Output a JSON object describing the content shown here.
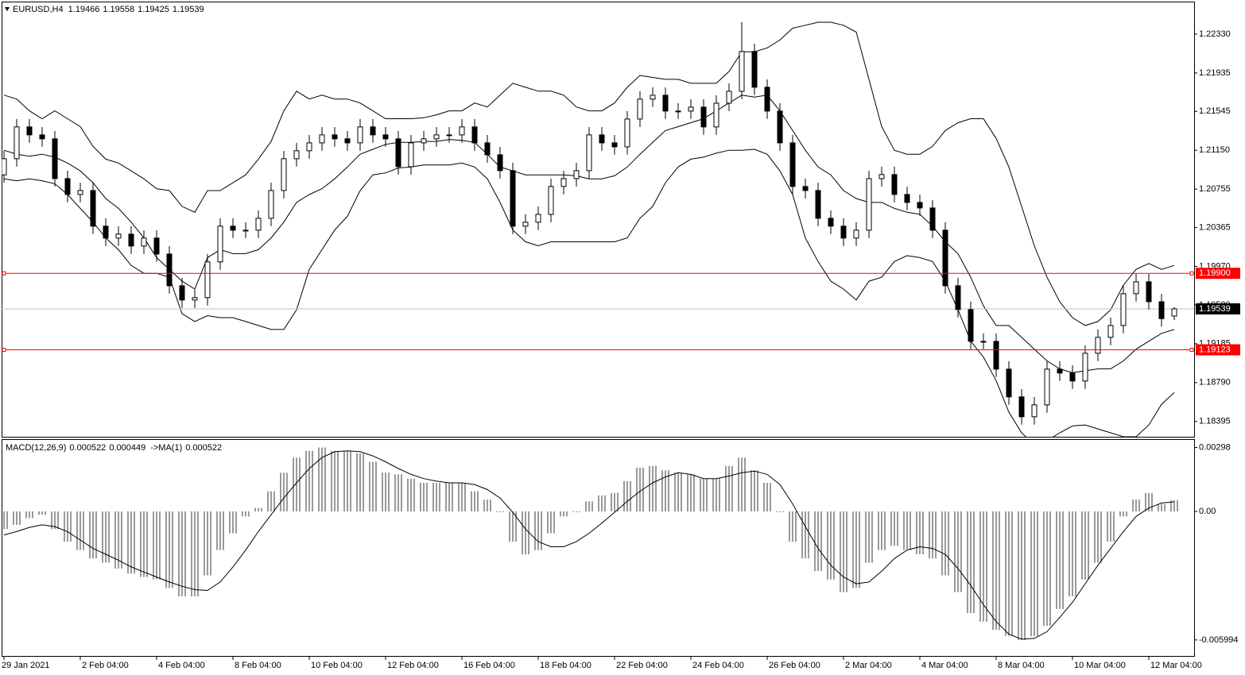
{
  "chart_data": [
    {
      "type": "candlestick",
      "symbol": "EURUSD,H4",
      "color": "#000000",
      "up_color": "#ffffff",
      "level_color": "#ff0000",
      "bid_color": "#c0c0c0",
      "categories": [
        "29 Jan 2021",
        null,
        null,
        null,
        null,
        null,
        "2 Feb 04:00",
        null,
        null,
        null,
        null,
        null,
        "4 Feb 04:00",
        null,
        null,
        null,
        null,
        null,
        "8 Feb 04:00",
        null,
        null,
        null,
        null,
        null,
        "10 Feb 04:00",
        null,
        null,
        null,
        null,
        null,
        "12 Feb 04:00",
        null,
        null,
        null,
        null,
        null,
        "16 Feb 04:00",
        null,
        null,
        null,
        null,
        null,
        "18 Feb 04:00",
        null,
        null,
        null,
        null,
        null,
        "22 Feb 04:00",
        null,
        null,
        null,
        null,
        null,
        "24 Feb 04:00",
        null,
        null,
        null,
        null,
        null,
        "26 Feb 04:00",
        null,
        null,
        null,
        null,
        null,
        "2 Mar 04:00",
        null,
        null,
        null,
        null,
        null,
        "4 Mar 04:00",
        null,
        null,
        null,
        null,
        null,
        "8 Mar 04:00",
        null,
        null,
        null,
        null,
        null,
        "10 Mar 04:00",
        null,
        null,
        null,
        null,
        null,
        "12 Mar 04:00",
        null,
        null
      ],
      "open": [
        1.209,
        1.21064,
        1.21387,
        1.21306,
        1.21266,
        1.20862,
        1.20701,
        1.20741,
        1.20379,
        1.20258,
        1.20298,
        1.20177,
        1.20258,
        1.20096,
        1.19774,
        1.19629,
        1.19653,
        1.20016,
        1.20379,
        1.20338,
        1.20338,
        1.20459,
        1.20741,
        1.21064,
        1.21145,
        1.21225,
        1.21306,
        1.21266,
        1.21225,
        1.21387,
        1.21306,
        1.21266,
        1.20983,
        1.21225,
        1.21266,
        1.21306,
        1.21306,
        1.21387,
        1.21225,
        1.21104,
        1.20943,
        1.20379,
        1.20419,
        1.20499,
        1.20782,
        1.20862,
        1.20943,
        1.21306,
        1.21225,
        1.21185,
        1.21467,
        1.21669,
        1.21709,
        1.21548,
        1.21548,
        1.21588,
        1.21387,
        1.21628,
        1.21749,
        1.22153,
        1.2179,
        1.21548,
        1.21225,
        1.20782,
        1.20741,
        1.20459,
        1.20379,
        1.20258,
        1.20338,
        1.20862,
        1.20903,
        1.20701,
        1.2062,
        1.20564,
        1.20338,
        1.19774,
        1.19532,
        1.19209,
        1.19209,
        1.18927,
        1.18645,
        1.18443,
        1.18564,
        1.18927,
        1.18887,
        1.18806,
        1.19088,
        1.1925,
        1.1937,
        1.19693,
        1.19814,
        1.19612,
        1.19466
      ],
      "high": [
        1.21144,
        1.21467,
        1.21467,
        1.21386,
        1.21346,
        1.20942,
        1.20821,
        1.20821,
        1.20459,
        1.20378,
        1.20378,
        1.20338,
        1.20338,
        1.20176,
        1.19854,
        1.19733,
        1.20096,
        1.20459,
        1.20459,
        1.20418,
        1.20539,
        1.20821,
        1.21144,
        1.21225,
        1.21305,
        1.21386,
        1.21386,
        1.21346,
        1.21467,
        1.21467,
        1.21386,
        1.21346,
        1.21305,
        1.21346,
        1.21386,
        1.21386,
        1.21467,
        1.21467,
        1.21305,
        1.21184,
        1.21023,
        1.20499,
        1.20579,
        1.20862,
        1.20942,
        1.21023,
        1.21386,
        1.21386,
        1.21305,
        1.21547,
        1.21749,
        1.21789,
        1.21789,
        1.21628,
        1.21668,
        1.21668,
        1.21708,
        1.21829,
        1.2245,
        1.22233,
        1.2187,
        1.21628,
        1.21305,
        1.20862,
        1.20821,
        1.20539,
        1.20459,
        1.20418,
        1.20942,
        1.20983,
        1.20983,
        1.20781,
        1.207,
        1.20644,
        1.20418,
        1.19854,
        1.19612,
        1.19289,
        1.19289,
        1.19007,
        1.18725,
        1.18644,
        1.19007,
        1.19007,
        1.18967,
        1.19168,
        1.1933,
        1.1945,
        1.19773,
        1.19894,
        1.19894,
        1.19692,
        1.19558
      ],
      "low": [
        1.2082,
        1.20984,
        1.21226,
        1.21186,
        1.20782,
        1.20621,
        1.20621,
        1.20299,
        1.20178,
        1.20178,
        1.20097,
        1.20097,
        1.20016,
        1.19694,
        1.19549,
        1.19549,
        1.19573,
        1.19936,
        1.20258,
        1.20258,
        1.20258,
        1.20379,
        1.20661,
        1.20984,
        1.21065,
        1.21145,
        1.21186,
        1.21145,
        1.21145,
        1.21226,
        1.21186,
        1.20903,
        1.20903,
        1.21145,
        1.21186,
        1.21226,
        1.21226,
        1.21145,
        1.21024,
        1.20863,
        1.20299,
        1.20299,
        1.20339,
        1.20419,
        1.20702,
        1.20782,
        1.20863,
        1.21145,
        1.21105,
        1.21105,
        1.21387,
        1.21589,
        1.21468,
        1.21468,
        1.21468,
        1.21307,
        1.21307,
        1.21548,
        1.21669,
        1.2171,
        1.21468,
        1.21145,
        1.20702,
        1.20661,
        1.20379,
        1.20299,
        1.20178,
        1.20178,
        1.20258,
        1.20782,
        1.20621,
        1.2054,
        1.20484,
        1.20258,
        1.19694,
        1.19452,
        1.19129,
        1.19129,
        1.18847,
        1.18565,
        1.18363,
        1.18363,
        1.18484,
        1.18807,
        1.18726,
        1.18726,
        1.19008,
        1.1917,
        1.1929,
        1.19613,
        1.19532,
        1.1936,
        1.19425
      ],
      "close": [
        1.21064,
        1.21387,
        1.21306,
        1.21266,
        1.20862,
        1.20701,
        1.20741,
        1.20379,
        1.20258,
        1.20298,
        1.20177,
        1.20258,
        1.20096,
        1.19774,
        1.19629,
        1.19653,
        1.20016,
        1.20379,
        1.20338,
        1.20338,
        1.20459,
        1.20741,
        1.21064,
        1.21145,
        1.21225,
        1.21306,
        1.21266,
        1.21225,
        1.21387,
        1.21306,
        1.21266,
        1.20983,
        1.21225,
        1.21266,
        1.21306,
        1.21306,
        1.21387,
        1.21225,
        1.21104,
        1.20943,
        1.20379,
        1.20419,
        1.20499,
        1.20782,
        1.20862,
        1.20943,
        1.21306,
        1.21225,
        1.21185,
        1.21467,
        1.21669,
        1.21709,
        1.21548,
        1.21548,
        1.21588,
        1.21387,
        1.21628,
        1.21749,
        1.22153,
        1.2179,
        1.21548,
        1.21225,
        1.20782,
        1.20741,
        1.20459,
        1.20379,
        1.20258,
        1.20338,
        1.20862,
        1.20903,
        1.20701,
        1.2062,
        1.20564,
        1.20338,
        1.19774,
        1.19532,
        1.19209,
        1.19209,
        1.18927,
        1.18645,
        1.18443,
        1.18564,
        1.18927,
        1.18887,
        1.18806,
        1.19088,
        1.1925,
        1.1937,
        1.19693,
        1.19814,
        1.19612,
        1.1944,
        1.19539
      ],
      "bands": {
        "upper": [
          1.2171,
          1.2167,
          1.2155,
          1.2147,
          1.2155,
          1.2147,
          1.2139,
          1.2119,
          1.2106,
          1.2102,
          1.2094,
          1.2086,
          1.2076,
          1.2074,
          1.2058,
          1.2052,
          1.2074,
          1.2074,
          1.2082,
          1.209,
          1.2106,
          1.2124,
          1.2155,
          1.2175,
          1.2167,
          1.2171,
          1.2167,
          1.2167,
          1.2163,
          1.2155,
          1.2147,
          1.2147,
          1.2147,
          1.2148,
          1.2151,
          1.2155,
          1.2155,
          1.2163,
          1.2159,
          1.2171,
          1.2183,
          1.2179,
          1.2175,
          1.2175,
          1.2171,
          1.2159,
          1.2155,
          1.2155,
          1.2163,
          1.2179,
          1.2191,
          1.2189,
          1.2187,
          1.2187,
          1.2183,
          1.2183,
          1.2183,
          1.2195,
          1.2215,
          1.2215,
          1.2219,
          1.2227,
          1.2239,
          1.2242,
          1.2245,
          1.2245,
          1.2242,
          1.2235,
          1.2187,
          1.2139,
          1.2115,
          1.2111,
          1.2111,
          1.2119,
          1.2135,
          1.2143,
          1.2147,
          1.2147,
          1.2127,
          1.2098,
          1.2058,
          1.2018,
          1.1986,
          1.1961,
          1.1945,
          1.1937,
          1.1941,
          1.1953,
          1.1978,
          1.1994,
          1.2,
          1.1994,
          1.1998
        ],
        "middle": [
          1.2115,
          1.2111,
          1.2109,
          1.2111,
          1.2108,
          1.2102,
          1.2094,
          1.2082,
          1.2066,
          1.2056,
          1.2042,
          1.2026,
          1.2006,
          1.1994,
          1.1982,
          1.1974,
          1.2006,
          1.2014,
          1.201,
          1.201,
          1.2014,
          1.2026,
          1.2042,
          1.2062,
          1.207,
          1.2076,
          1.2086,
          1.2098,
          1.2111,
          1.2116,
          1.2121,
          1.2123,
          1.2123,
          1.2124,
          1.2124,
          1.2126,
          1.2125,
          1.2123,
          1.2111,
          1.2098,
          1.2094,
          1.209,
          1.209,
          1.209,
          1.209,
          1.2089,
          1.2086,
          1.2086,
          1.2089,
          1.2098,
          1.2111,
          1.2123,
          1.2135,
          1.2139,
          1.2143,
          1.2147,
          1.2155,
          1.2163,
          1.2171,
          1.2169,
          1.2171,
          1.2155,
          1.2135,
          1.2115,
          1.2098,
          1.209,
          1.2074,
          1.2066,
          1.2062,
          1.2062,
          1.2056,
          1.2052,
          1.205,
          1.2038,
          1.2022,
          1.201,
          1.1986,
          1.1957,
          1.1937,
          1.1937,
          1.1925,
          1.1913,
          1.1901,
          1.1893,
          1.1889,
          1.1891,
          1.1893,
          1.1893,
          1.1901,
          1.1913,
          1.1921,
          1.1929,
          1.1933
        ],
        "lower": [
          1.2086,
          1.2084,
          1.2086,
          1.2084,
          1.2081,
          1.207,
          1.2056,
          1.2042,
          1.2026,
          1.2014,
          1.1998,
          1.199,
          1.199,
          1.1986,
          1.1949,
          1.1941,
          1.1947,
          1.1945,
          1.1945,
          1.1941,
          1.1937,
          1.1933,
          1.1933,
          1.1953,
          1.1994,
          1.2014,
          1.2034,
          1.2048,
          1.2074,
          1.209,
          1.2092,
          1.2097,
          1.2098,
          1.21,
          1.21,
          1.21,
          1.2102,
          1.2098,
          1.2086,
          1.2062,
          1.2034,
          1.2022,
          1.2018,
          1.2022,
          1.2022,
          1.2022,
          1.2022,
          1.2022,
          1.2022,
          1.2026,
          1.2046,
          1.2058,
          1.2082,
          1.2098,
          1.2106,
          1.2108,
          1.2112,
          1.2115,
          1.2115,
          1.2116,
          1.2111,
          1.2094,
          1.207,
          1.2026,
          1.2002,
          1.1982,
          1.1974,
          1.1963,
          1.1982,
          1.1986,
          1.2002,
          1.2008,
          1.2006,
          1.2002,
          1.1982,
          1.1953,
          1.1921,
          1.1905,
          1.1881,
          1.1849,
          1.1828,
          1.1816,
          1.182,
          1.1828,
          1.1835,
          1.1836,
          1.1832,
          1.1828,
          1.1824,
          1.1824,
          1.1836,
          1.1857,
          1.1869
        ]
      },
      "levels": [
        {
          "value": 1.199,
          "label": "1.19900"
        },
        1.19123
      ],
      "ylim": [
        1.1824,
        1.2266
      ],
      "yticks": [
        {
          "value": 1.2233,
          "label": "1.22330"
        },
        1.21935,
        1.21545,
        {
          "value": 1.2115,
          "label": "1.21150"
        },
        1.20755,
        1.20365,
        {
          "value": 1.1997,
          "label": "1.19970"
        },
        {
          "value": 1.1958,
          "label": "1.19580"
        },
        1.19185,
        {
          "value": 1.1879,
          "label": "1.18790"
        },
        1.18395
      ]
    },
    {
      "type": "macd",
      "title": "MACD(12,26,9)",
      "signal_title": "->MA(1)",
      "color": "#000000",
      "histogram": [
        -0.000824,
        -0.000627,
        -0.000314,
        -0.000157,
        -0.000824,
        -0.001412,
        -0.001804,
        -0.002196,
        -0.002392,
        -0.002667,
        -0.002902,
        -0.003059,
        -0.003176,
        -0.003569,
        -0.003961,
        -0.003961,
        -0.00298,
        -0.001804,
        -0.00102,
        -0.000235,
        0.000157,
        0.000941,
        0.001804,
        0.00251,
        0.002824,
        0.00298,
        0.002824,
        0.002824,
        0.002706,
        0.002314,
        0.001804,
        0.001725,
        0.001529,
        0.001333,
        0.001333,
        0.001333,
        0.001333,
        0.000941,
        0.000549,
        -3.9e-05,
        -0.001412,
        -0.002,
        -0.001804,
        -0.00102,
        -0.000235,
        -3.9e-05,
        0.000471,
        0.000745,
        0.000863,
        0.001412,
        0.002039,
        0.002118,
        0.001922,
        0.001804,
        0.001725,
        0.001529,
        0.001529,
        0.002118,
        0.00251,
        0.001922,
        0.001333,
        -3.9e-05,
        -0.001412,
        -0.002196,
        -0.002784,
        -0.003176,
        -0.003765,
        -0.003569,
        -0.002392,
        -0.001804,
        -0.001608,
        -0.001804,
        -0.002,
        -0.002196,
        -0.00298,
        -0.003765,
        -0.004745,
        -0.005137,
        -0.005529,
        -0.0058,
        -0.005994,
        -0.00582,
        -0.005333,
        -0.004549,
        -0.003961,
        -0.003176,
        -0.002392,
        -0.001412,
        -0.000235,
        0.000549,
        0.000863,
        0.000353,
        0.000522
      ],
      "signal": [
        -0.001098,
        -0.000941,
        -0.000745,
        -0.000627,
        -0.000706,
        -0.000941,
        -0.001333,
        -0.001725,
        -0.002,
        -0.002274,
        -0.002588,
        -0.002824,
        -0.003059,
        -0.003294,
        -0.00349,
        -0.003647,
        -0.003686,
        -0.003294,
        -0.002588,
        -0.001804,
        -0.000941,
        -0.000157,
        0.000627,
        0.001333,
        0.002,
        0.00251,
        0.002784,
        0.002824,
        0.002784,
        0.002588,
        0.002314,
        0.002,
        0.001725,
        0.001529,
        0.001412,
        0.001333,
        0.001333,
        0.001255,
        0.00102,
        0.000627,
        -3.9e-05,
        -0.000824,
        -0.001412,
        -0.001647,
        -0.001647,
        -0.001412,
        -0.00102,
        -0.000549,
        -3.9e-05,
        0.000471,
        0.000941,
        0.001333,
        0.001608,
        0.001804,
        0.001725,
        0.001529,
        0.001529,
        0.001647,
        0.001804,
        0.001882,
        0.001725,
        0.001255,
        0.000353,
        -0.000706,
        -0.001725,
        -0.00251,
        -0.003059,
        -0.003373,
        -0.003294,
        -0.002784,
        -0.002196,
        -0.001804,
        -0.001647,
        -0.001725,
        -0.002,
        -0.002667,
        -0.00345,
        -0.004353,
        -0.005137,
        -0.005725,
        -0.00596,
        -0.00592,
        -0.005608,
        -0.004941,
        -0.004235,
        -0.003373,
        -0.00251,
        -0.001725,
        -0.000941,
        -0.000235,
        0.000157,
        0.000392,
        0.000449
      ],
      "ylim": [
        -0.00674,
        0.00337
      ],
      "yticks": [
        0.00298,
        {
          "value": 0,
          "label": "0.00"
        },
        -0.005994
      ]
    }
  ]
}
